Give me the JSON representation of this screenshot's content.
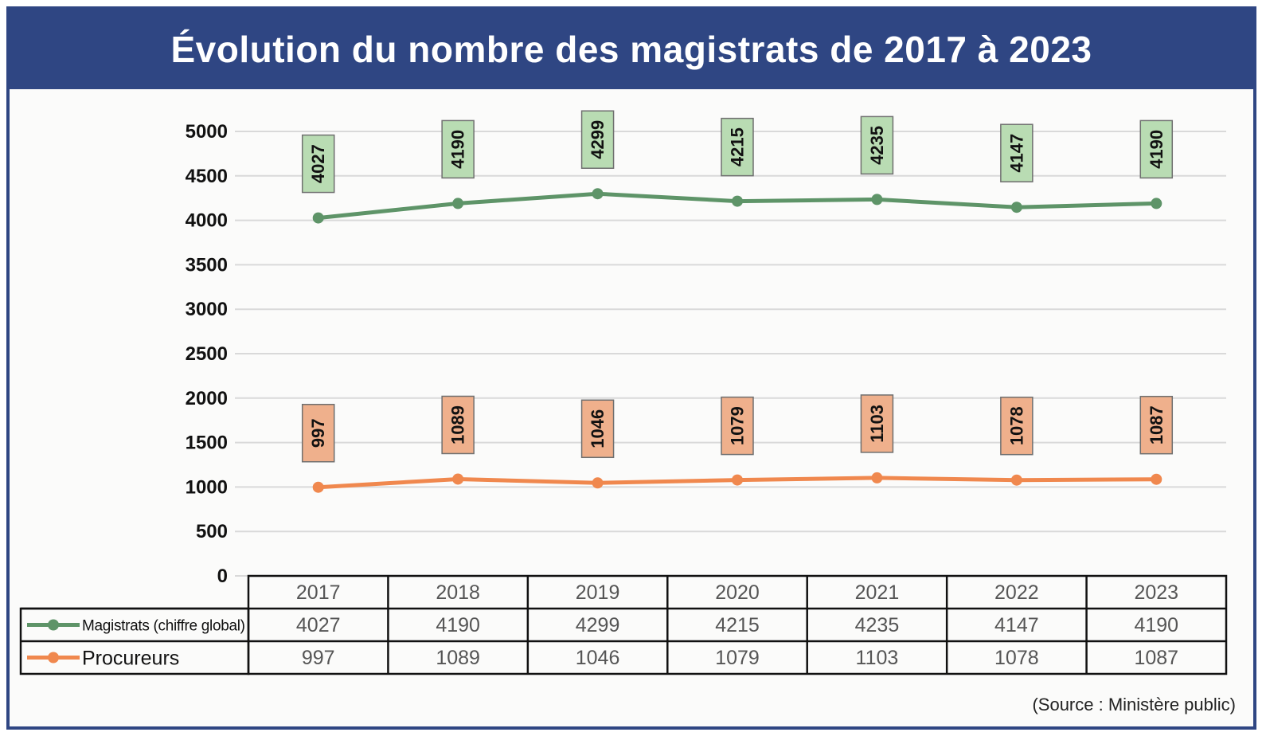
{
  "title": "Évolution du nombre des magistrats de 2017 à 2023",
  "source": "(Source : Ministère public)",
  "colors": {
    "header": "#2f4683",
    "magistrats_line": "#5e9468",
    "magistrats_label_bg": "#b9dcb3",
    "procureurs_line": "#f0884e",
    "procureurs_label_bg": "#efb08c",
    "grid": "#d9d9d9"
  },
  "chart_data": {
    "type": "line",
    "title": "Évolution du nombre des magistrats de 2017 à 2023",
    "categories": [
      "2017",
      "2018",
      "2019",
      "2020",
      "2021",
      "2022",
      "2023"
    ],
    "series": [
      {
        "name": "Magistrats (chiffre global)",
        "values": [
          4027,
          4190,
          4299,
          4215,
          4235,
          4147,
          4190
        ]
      },
      {
        "name": "Procureurs",
        "values": [
          997,
          1089,
          1046,
          1079,
          1103,
          1078,
          1087
        ]
      }
    ],
    "ylim": [
      0,
      5000
    ],
    "yticks": [
      0,
      500,
      1000,
      1500,
      2000,
      2500,
      3000,
      3500,
      4000,
      4500,
      5000
    ],
    "grid": true,
    "legend": "data-table-below"
  }
}
